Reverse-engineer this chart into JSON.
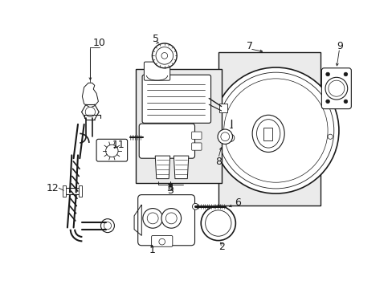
{
  "bg_color": "#ffffff",
  "line_color": "#1a1a1a",
  "box_fill": "#ebebeb",
  "fig_width": 4.89,
  "fig_height": 3.6,
  "dpi": 100
}
